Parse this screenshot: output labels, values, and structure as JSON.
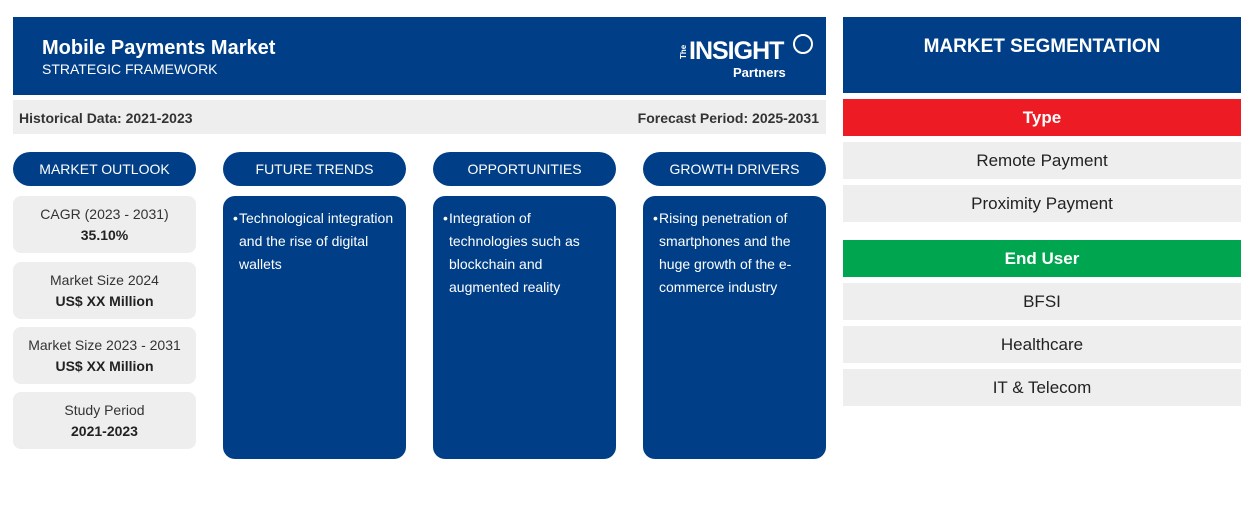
{
  "header": {
    "title": "Mobile Payments Market",
    "subtitle": "STRATEGIC FRAMEWORK",
    "logo": {
      "the": "The",
      "insight": "INSIGHT",
      "partners": "Partners"
    }
  },
  "periods": {
    "historical": "Historical Data: 2021-2023",
    "forecast": "Forecast Period: 2025-2031"
  },
  "columns": {
    "outlook": "MARKET OUTLOOK",
    "trends": "FUTURE TRENDS",
    "opportunities": "OPPORTUNITIES",
    "drivers": "GROWTH DRIVERS"
  },
  "outlook": [
    {
      "label": "CAGR (2023 - 2031)",
      "value": "35.10%"
    },
    {
      "label": "Market Size 2024",
      "value": "US$ XX Million"
    },
    {
      "label": "Market Size 2023 - 2031",
      "value": "US$ XX Million"
    },
    {
      "label": "Study Period",
      "value": "2021-2023"
    }
  ],
  "trends_text": "Technological integration and the rise of digital wallets",
  "opportunities_text": "Integration of technologies such as blockchain and augmented reality",
  "drivers_text": "Rising penetration of smartphones and the huge growth of the e-commerce industry",
  "bullet": "•",
  "segmentation": {
    "title": "MARKET SEGMENTATION",
    "type_label": "Type",
    "type_items": [
      "Remote Payment",
      "Proximity Payment"
    ],
    "end_user_label": "End User",
    "end_user_items": [
      "BFSI",
      "Healthcare",
      "IT & Telecom"
    ]
  },
  "colors": {
    "navy": "#003f87",
    "red": "#ed1c24",
    "green": "#00a64f",
    "light_gray": "#eeeeee"
  }
}
